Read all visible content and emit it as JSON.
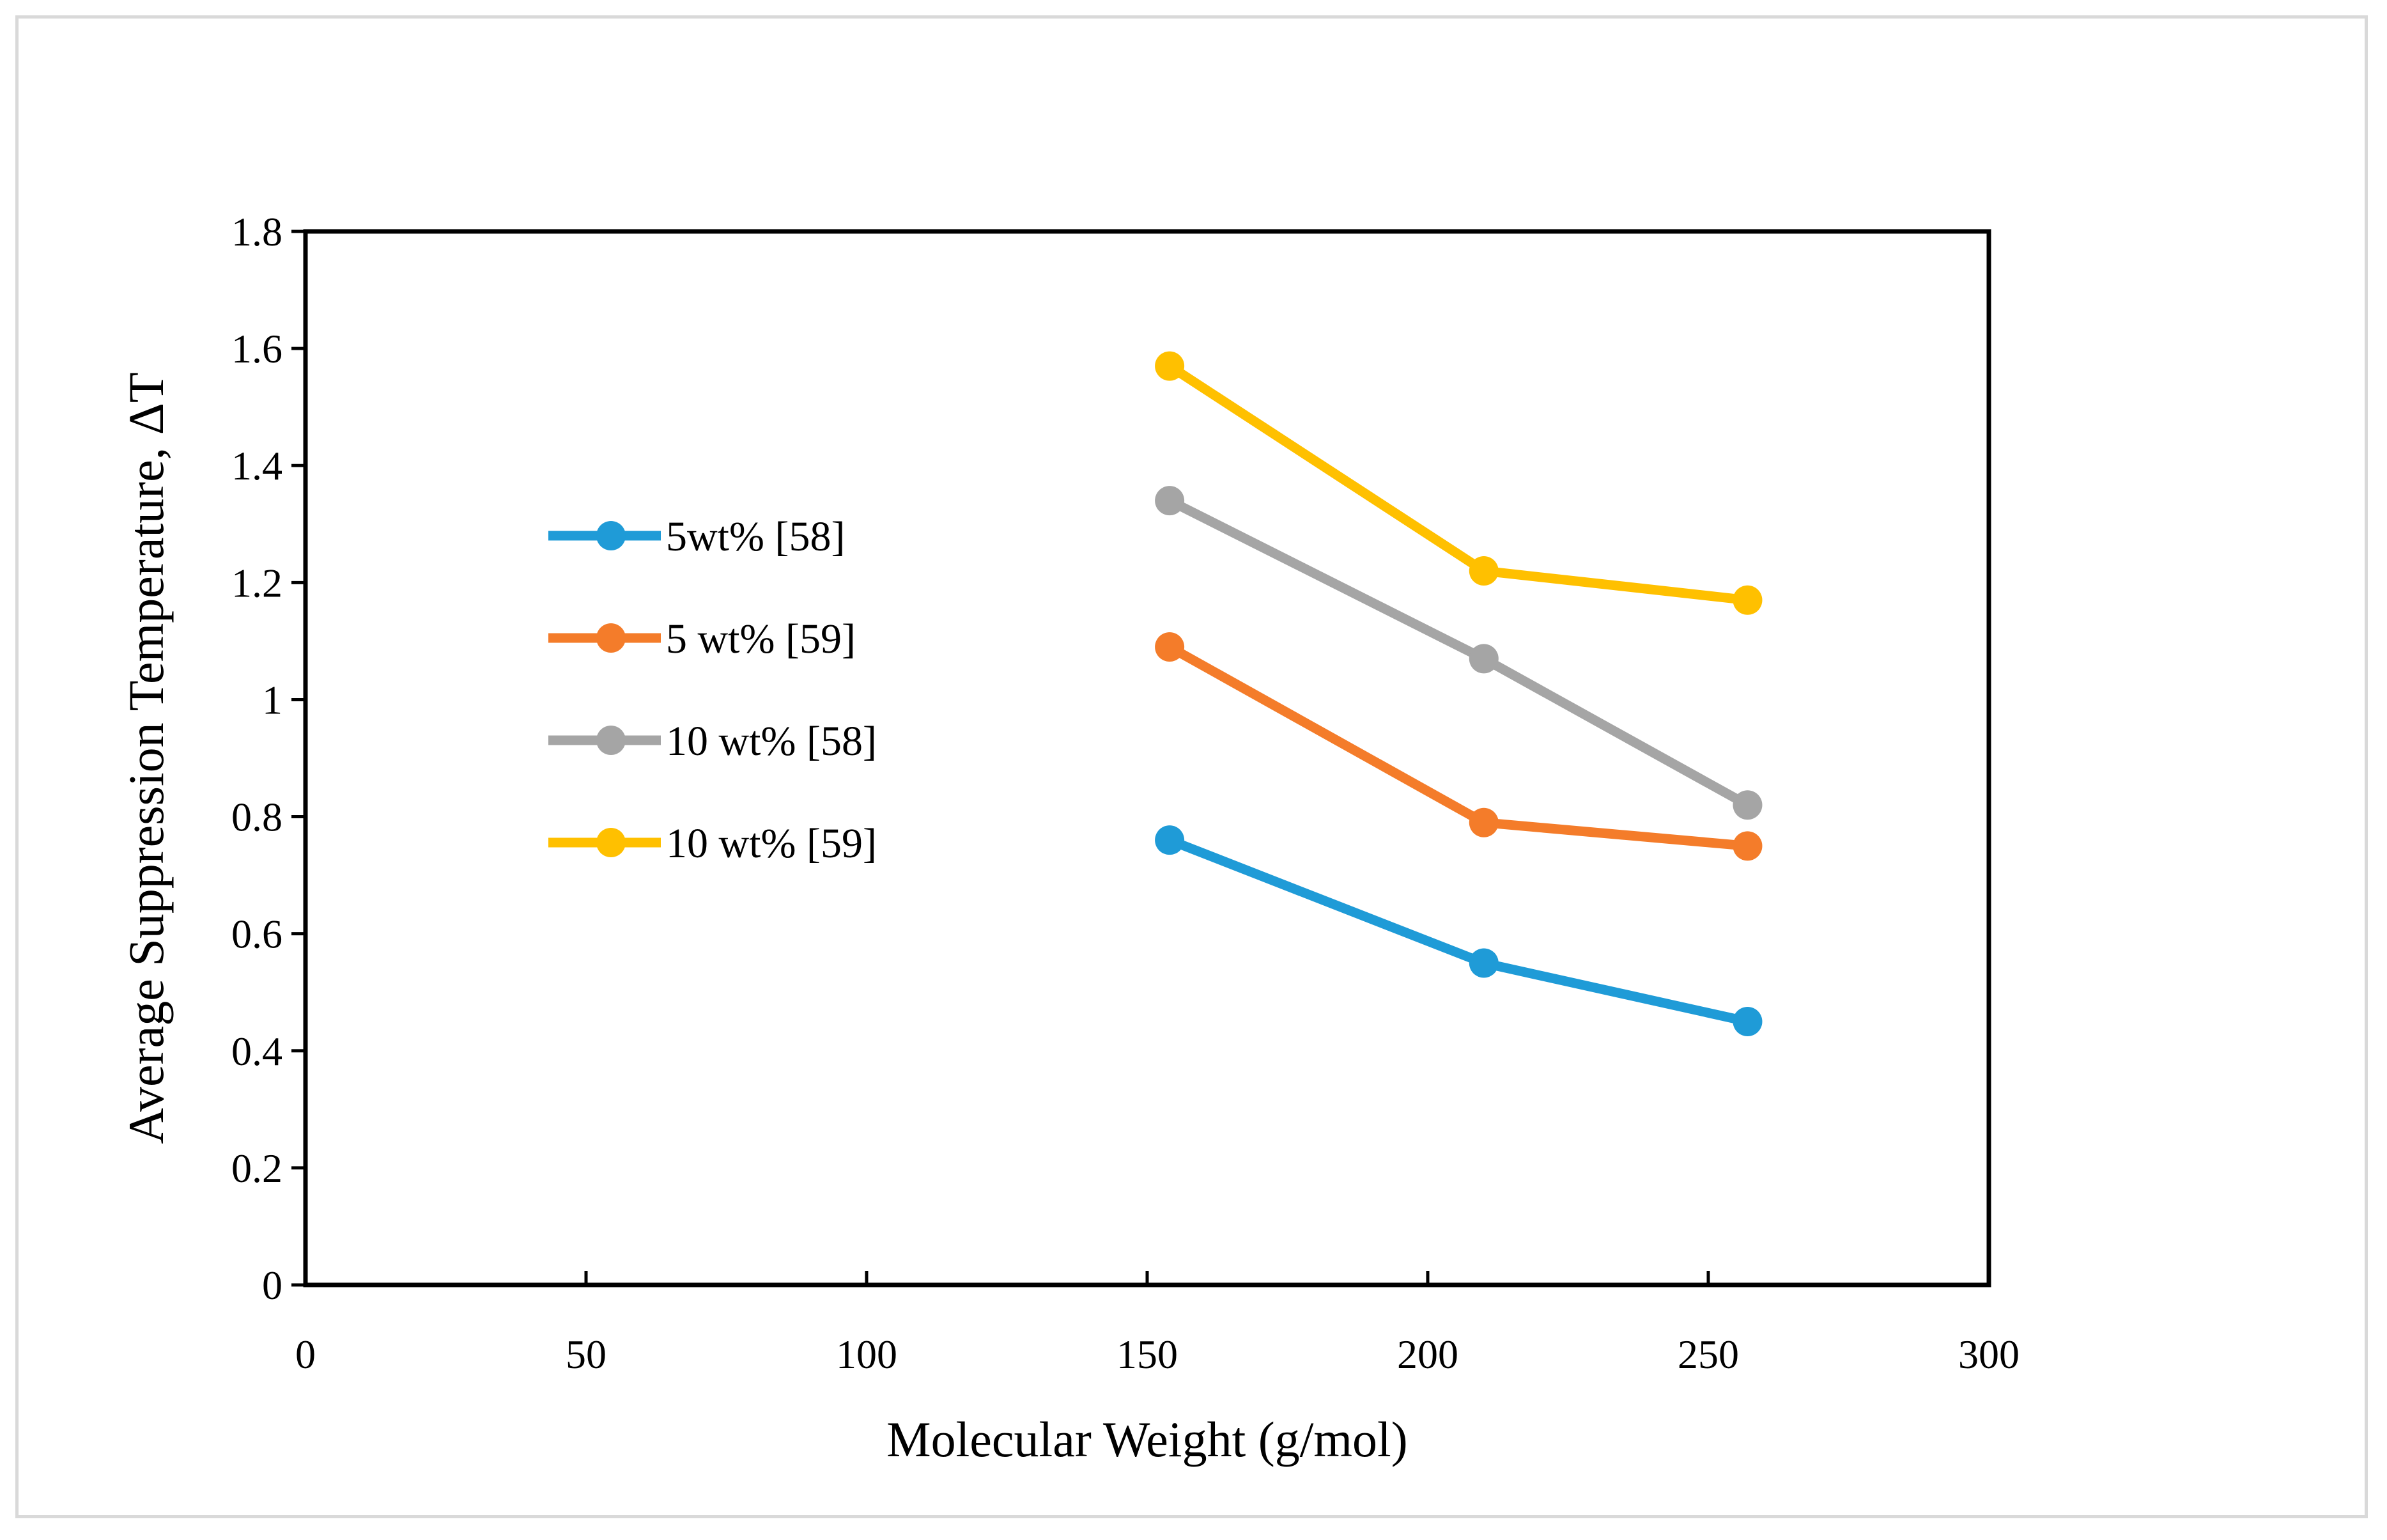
{
  "chart_data": {
    "type": "line",
    "title": "",
    "xlabel": "Molecular Weight (g/mol)",
    "ylabel": "Average Suppression Temperature, ΔT",
    "xlim": [
      0,
      300
    ],
    "ylim": [
      0,
      1.8
    ],
    "xticks": [
      0,
      50,
      100,
      150,
      200,
      250,
      300
    ],
    "yticks": [
      0,
      0.2,
      0.4,
      0.6,
      0.8,
      1,
      1.2,
      1.4,
      1.6,
      1.8
    ],
    "xtick_labels": [
      "0",
      "50",
      "100",
      "150",
      "200",
      "250",
      "300"
    ],
    "ytick_labels": [
      "0",
      "0.2",
      "0.4",
      "0.6",
      "0.8",
      "1",
      "1.2",
      "1.4",
      "1.6",
      "1.8"
    ],
    "grid": false,
    "legend_position": "left-center inside plot",
    "x": [
      154,
      210,
      257
    ],
    "series": [
      {
        "name": "5wt% [58]",
        "color": "#1f9bd7",
        "values": [
          0.76,
          0.55,
          0.45
        ]
      },
      {
        "name": "5 wt% [59]",
        "color": "#f47c2a",
        "values": [
          1.09,
          0.79,
          0.75
        ]
      },
      {
        "name": "10 wt% [58]",
        "color": "#a5a5a5",
        "values": [
          1.34,
          1.07,
          0.82
        ]
      },
      {
        "name": "10 wt% [59]",
        "color": "#ffc000",
        "values": [
          1.57,
          1.22,
          1.17
        ]
      }
    ]
  }
}
